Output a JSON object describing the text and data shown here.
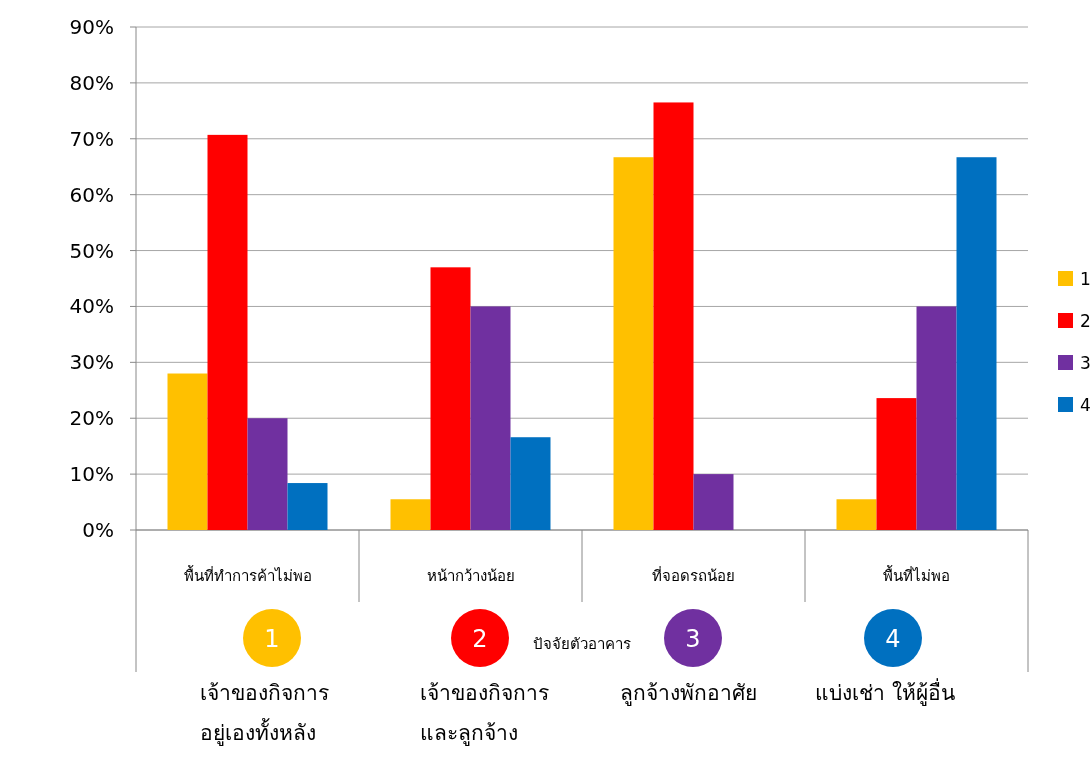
{
  "chart_data": {
    "type": "bar",
    "xlabel": "ปัจจัยตัวอาคาร",
    "categories": [
      "พื้นที่ทำการค้าไม่พอ",
      "หน้ากว้างน้อย",
      "ที่จอดรถน้อย",
      "พื้นที่ไม่พอ"
    ],
    "series": [
      {
        "name": "1",
        "color": "#ffc000",
        "values": [
          28,
          5.5,
          66.7,
          5.5
        ]
      },
      {
        "name": "2",
        "color": "#ff0000",
        "values": [
          70.7,
          47,
          76.5,
          23.6
        ]
      },
      {
        "name": "3",
        "color": "#7030a0",
        "values": [
          20,
          40,
          10,
          40
        ]
      },
      {
        "name": "4",
        "color": "#0070c0",
        "values": [
          8.4,
          16.6,
          0,
          66.7
        ]
      }
    ],
    "ylim": [
      0,
      90
    ],
    "yticks": [
      {
        "value": 0,
        "label": "0%"
      },
      {
        "value": 10,
        "label": "10%"
      },
      {
        "value": 20,
        "label": "20%"
      },
      {
        "value": 30,
        "label": "30%"
      },
      {
        "value": 40,
        "label": "40%"
      },
      {
        "value": 50,
        "label": "50%"
      },
      {
        "value": 60,
        "label": "60%"
      },
      {
        "value": 70,
        "label": "70%"
      },
      {
        "value": 80,
        "label": "80%"
      },
      {
        "value": 90,
        "label": "90%"
      }
    ],
    "grid": "y",
    "legend": "right",
    "annotations": [
      "เจ้าของกิจการ\nอยู่เองทั้งหลัง",
      "เจ้าของกิจการ\nและลูกจ้าง",
      "ลูกจ้างพักอาศัย",
      "แบ่งเช่า ให้ผู้อื่น"
    ]
  }
}
